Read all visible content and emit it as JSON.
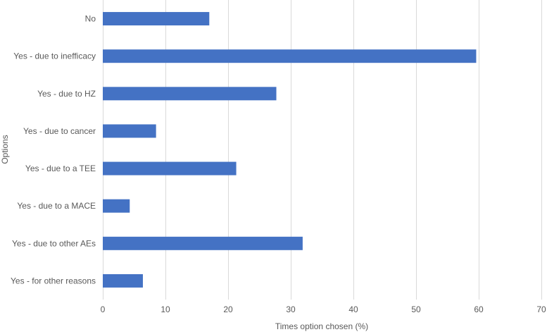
{
  "chart_data": {
    "type": "bar",
    "orientation": "horizontal",
    "categories": [
      "No",
      "Yes - due to inefficacy",
      "Yes - due to HZ",
      "Yes - due to cancer",
      "Yes - due to a TEE",
      "Yes - due to a MACE",
      "Yes - due to other AEs",
      "Yes - for other reasons"
    ],
    "values": [
      17.0,
      59.6,
      27.7,
      8.5,
      21.3,
      4.3,
      31.9,
      6.4
    ],
    "xlabel": "Times option chosen (%)",
    "ylabel": "Options",
    "xlim": [
      0,
      70
    ],
    "xticks": [
      "0",
      "10",
      "20",
      "30",
      "40",
      "50",
      "60",
      "70"
    ],
    "grid": "vertical",
    "legend": "none",
    "bar_color": "#4472C4"
  }
}
